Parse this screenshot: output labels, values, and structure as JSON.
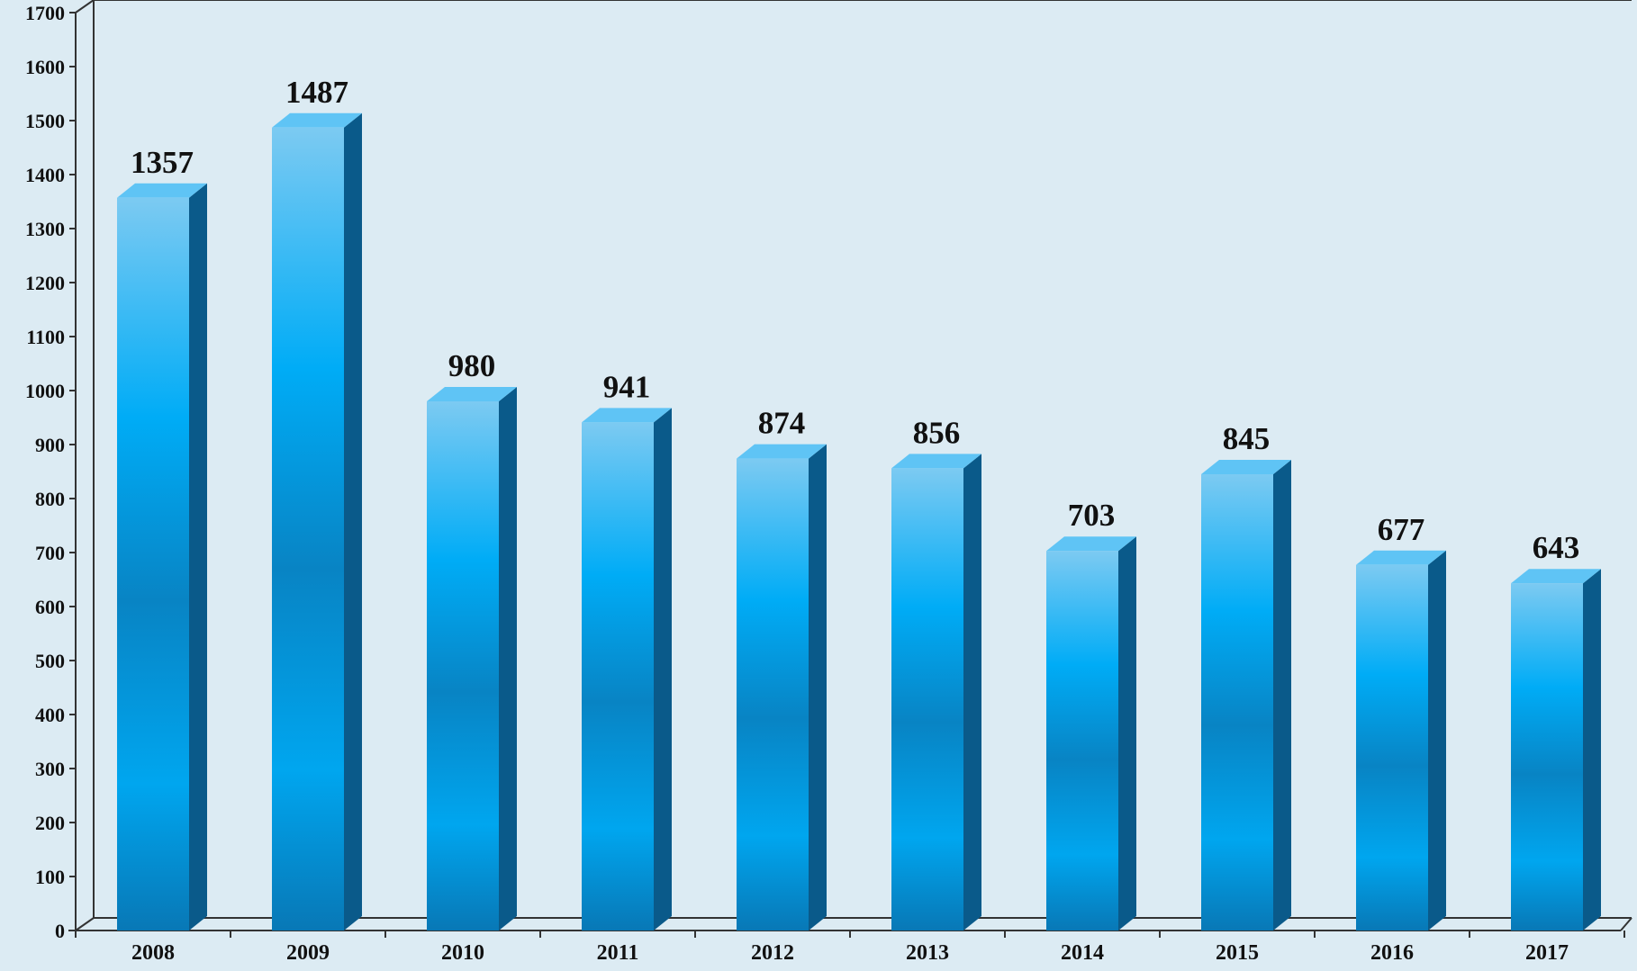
{
  "chart_data": {
    "type": "bar",
    "title": "",
    "xlabel": "",
    "ylabel": "",
    "categories": [
      "2008",
      "2009",
      "2010",
      "2011",
      "2012",
      "2013",
      "2014",
      "2015",
      "2016",
      "2017"
    ],
    "values": [
      1357,
      1487,
      980,
      941,
      874,
      856,
      703,
      845,
      677,
      643
    ],
    "ylim": [
      0,
      1700
    ],
    "yticks": [
      0,
      100,
      200,
      300,
      400,
      500,
      600,
      700,
      800,
      900,
      1000,
      1100,
      1200,
      1300,
      1400,
      1500,
      1600,
      1700
    ],
    "data_labels": true,
    "grid": false,
    "legend": "none",
    "style": "3d-bar",
    "colors": {
      "background": "#dcebf3",
      "bar_edge": "#74c7f2",
      "bar_mid": "#00aaf5",
      "bar_dark": "#0872b0",
      "bar_side": "#0a5a8a",
      "bar_top": "#5fc4f5",
      "axis": "#333333"
    }
  }
}
